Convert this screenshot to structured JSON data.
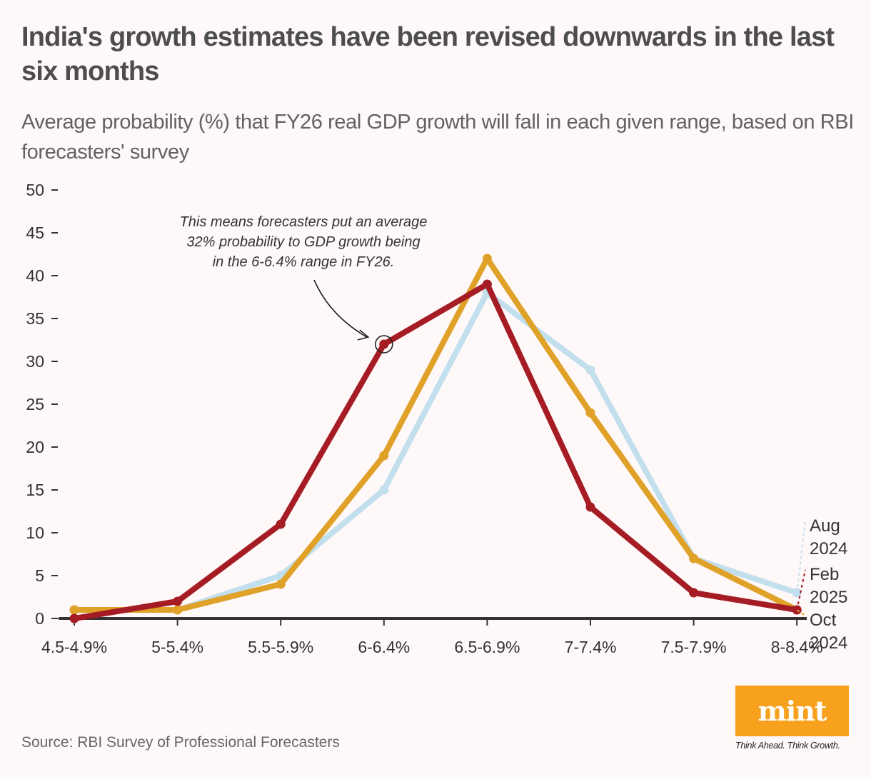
{
  "header": {
    "title": "India's growth estimates have been revised downwards in the last six months",
    "subtitle": "Average probability (%) that FY26 real GDP growth will fall in each given range, based on RBI forecasters' survey"
  },
  "footer": {
    "source": "Source: RBI Survey of Professional Forecasters",
    "logo_text": "mint",
    "tagline": "Think Ahead. Think Growth.",
    "logo_color": "#f8a11d"
  },
  "chart_data": {
    "type": "line",
    "title": "India's growth estimates have been revised downwards in the last six months",
    "subtitle": "Average probability (%) that FY26 real GDP growth will fall in each given range, based on RBI forecasters' survey",
    "xlabel": "",
    "ylabel": "",
    "categories": [
      "4.5-4.9%",
      "5-5.4%",
      "5.5-5.9%",
      "6-6.4%",
      "6.5-6.9%",
      "7-7.4%",
      "7.5-7.9%",
      "8-8.4%"
    ],
    "ylim": [
      0,
      50
    ],
    "yticks": [
      0,
      5,
      10,
      15,
      20,
      25,
      30,
      35,
      40,
      45,
      50
    ],
    "grid": false,
    "legend": "inline-right",
    "series": [
      {
        "name": "Aug 2024",
        "label_lines": [
          "Aug",
          "2024"
        ],
        "color": "#c2dfee",
        "values": [
          1,
          1,
          5,
          15,
          38,
          29,
          7,
          3
        ]
      },
      {
        "name": "Oct 2024",
        "label_lines": [
          "Oct",
          "2024"
        ],
        "color": "#e0a128",
        "values": [
          1,
          1,
          4,
          19,
          42,
          24,
          7,
          1
        ]
      },
      {
        "name": "Feb 2025",
        "label_lines": [
          "Feb",
          "2025"
        ],
        "color": "#a51c24",
        "values": [
          0,
          2,
          11,
          32,
          39,
          13,
          3,
          1
        ]
      }
    ],
    "annotations": [
      {
        "text_lines": [
          "This means forecasters put an average",
          "32% probability to GDP growth being",
          "in the 6-6.4% range in FY26."
        ],
        "target_series": "Feb 2025",
        "target_category": "6-6.4%",
        "target_value": 32
      }
    ]
  }
}
